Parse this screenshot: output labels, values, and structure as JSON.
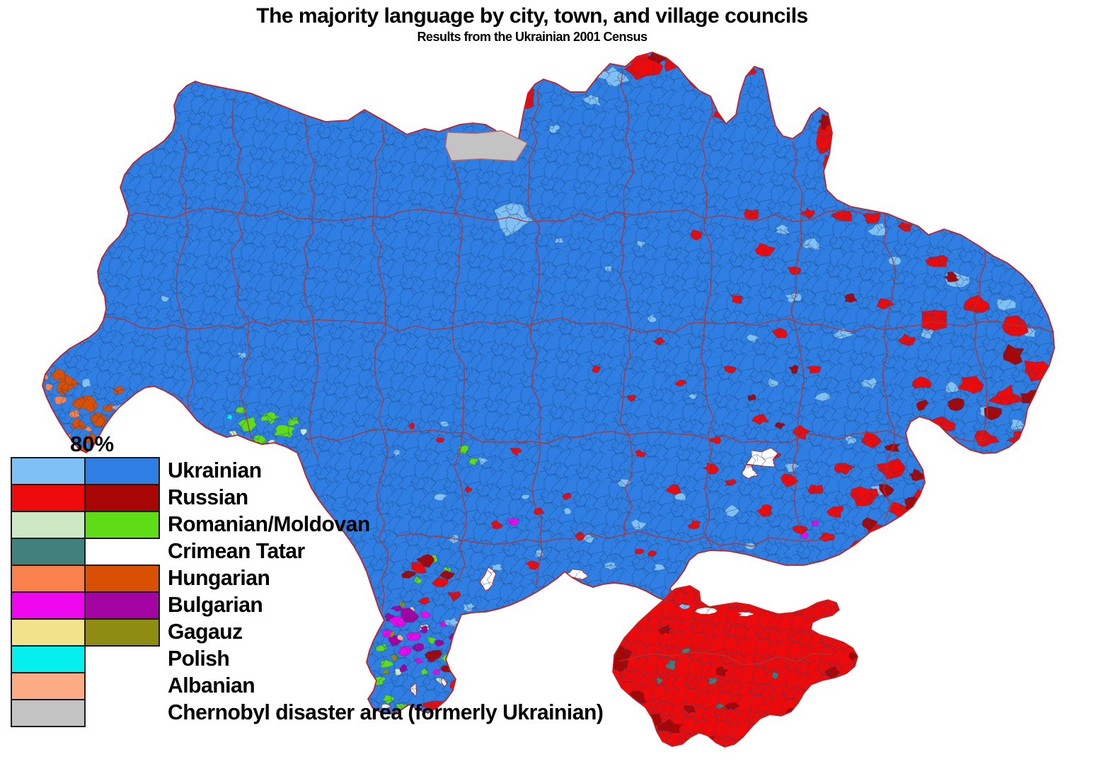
{
  "title": "The majority language by city, town, and village councils",
  "subtitle": "Results from the Ukrainian 2001 Census",
  "legend": {
    "threshold_label": "80%",
    "items": [
      {
        "label": "Ukrainian",
        "light": "#7FC0F5",
        "dark": "#2E7EE3"
      },
      {
        "label": "Russian",
        "light": "#EE0A0A",
        "dark": "#A80505"
      },
      {
        "label": "Romanian/Moldovan",
        "light": "#CDE9C3",
        "dark": "#5EDC15"
      },
      {
        "label": "Crimean Tatar",
        "light": "#41807D",
        "dark": null
      },
      {
        "label": "Hungarian",
        "light": "#F9814B",
        "dark": "#D94F04"
      },
      {
        "label": "Bulgarian",
        "light": "#EE06EE",
        "dark": "#A303A3"
      },
      {
        "label": "Gagauz",
        "light": "#F2E38A",
        "dark": "#8F8D11"
      },
      {
        "label": "Polish",
        "light": "#06EFEF",
        "dark": null
      },
      {
        "label": "Albanian",
        "light": "#FBAC85",
        "dark": null
      },
      {
        "label": "Chernobyl disaster area (formerly Ukrainian)",
        "light": "#C3C3C3",
        "dark": null
      }
    ]
  },
  "map": {
    "colors": {
      "ukrainian_light": "#7FC0F5",
      "ukrainian_dark": "#2E7EE3",
      "russian_light": "#EE0A0A",
      "russian_dark": "#A80505",
      "romanian_light": "#CDE9C3",
      "romanian_dark": "#5EDC15",
      "crimean_tatar": "#41807D",
      "hungarian_light": "#F9814B",
      "hungarian_dark": "#D94F04",
      "bulgarian_light": "#EE06EE",
      "bulgarian_dark": "#A303A3",
      "gagauz_light": "#F2E38A",
      "gagauz_dark": "#8F8D11",
      "polish": "#06EFEF",
      "albanian": "#FBAC85",
      "chernobyl": "#C3C3C3",
      "water": "#FFFFFF",
      "council_border": "#1D4373",
      "oblast_border": "#B13434",
      "state_border": "#C32222"
    }
  }
}
